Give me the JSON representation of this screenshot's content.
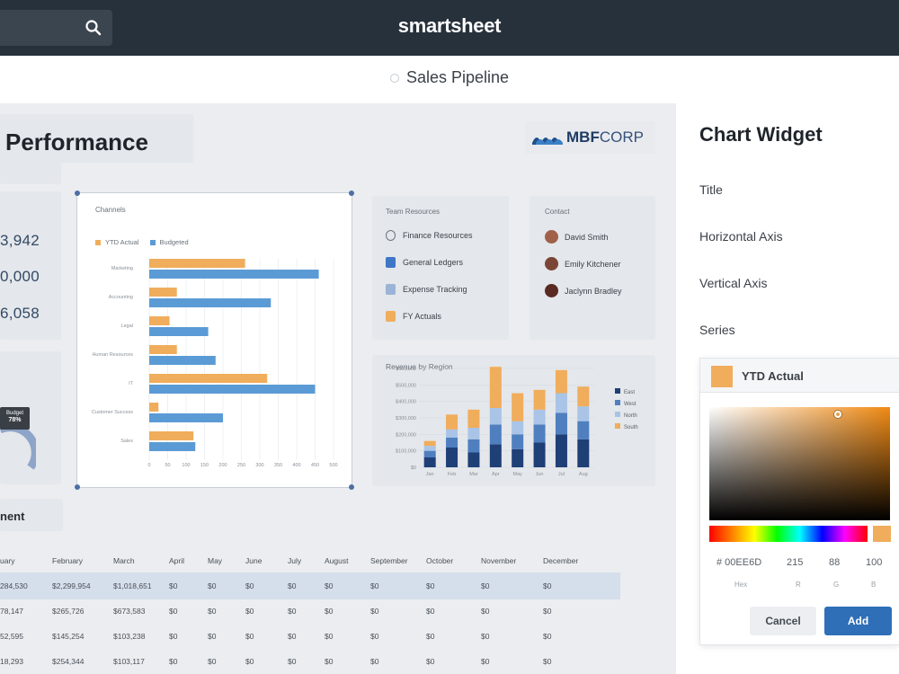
{
  "app": {
    "brand": "smartsheet",
    "sheet_title": "Sales Pipeline"
  },
  "dashboard": {
    "title": "Performance",
    "logo": {
      "bold": "MBF",
      "light": "CORP"
    },
    "stats": [
      "3,942",
      "0,000",
      "6,058"
    ],
    "gauge_badge": {
      "label": "Budget",
      "value": "78%"
    },
    "section_label": "nent",
    "bar_chart": {
      "title": "Channels",
      "legend": [
        "YTD Actual",
        "Budgeted"
      ]
    },
    "team_resources": {
      "title": "Team Resources",
      "items": [
        "Finance Resources",
        "General Ledgers",
        "Expense Tracking",
        "FY Actuals"
      ]
    },
    "contact": {
      "title": "Contact",
      "items": [
        "David Smith",
        "Emily Kitchener",
        "Jaclynn Bradley"
      ]
    },
    "region_chart": {
      "title": "Revenue by Region"
    },
    "month_table": {
      "headers": [
        "uary",
        "February",
        "March",
        "April",
        "May",
        "June",
        "July",
        "August",
        "September",
        "October",
        "November",
        "December"
      ],
      "rows": [
        [
          "284,530",
          "$2,299,954",
          "$1,018,651",
          "$0",
          "$0",
          "$0",
          "$0",
          "$0",
          "$0",
          "$0",
          "$0",
          "$0"
        ],
        [
          "78,147",
          "$265,726",
          "$673,583",
          "$0",
          "$0",
          "$0",
          "$0",
          "$0",
          "$0",
          "$0",
          "$0",
          "$0"
        ],
        [
          "52,595",
          "$145,254",
          "$103,238",
          "$0",
          "$0",
          "$0",
          "$0",
          "$0",
          "$0",
          "$0",
          "$0",
          "$0"
        ],
        [
          "18,293",
          "$254,344",
          "$103,117",
          "$0",
          "$0",
          "$0",
          "$0",
          "$0",
          "$0",
          "$0",
          "$0",
          "$0"
        ]
      ]
    }
  },
  "chart_data": [
    {
      "type": "bar",
      "orientation": "horizontal",
      "title": "Channels",
      "categories": [
        "Marketing",
        "Accounting",
        "Legal",
        "Human Resources",
        "IT",
        "Customer Success",
        "Sales"
      ],
      "series": [
        {
          "name": "YTD Actual",
          "color": "#f0ad5c",
          "values": [
            260,
            75,
            55,
            75,
            320,
            25,
            120
          ]
        },
        {
          "name": "Budgeted",
          "color": "#5b9bd5",
          "values": [
            460,
            330,
            160,
            180,
            450,
            200,
            125
          ]
        }
      ],
      "xlim": [
        0,
        500
      ]
    },
    {
      "type": "bar",
      "stacked": true,
      "title": "Revenue by Region",
      "categories": [
        "Jan",
        "Feb",
        "Mar",
        "Apr",
        "May",
        "Jun",
        "Jul",
        "Aug"
      ],
      "series": [
        {
          "name": "East",
          "color": "#1f3f77",
          "values": [
            60000,
            120000,
            90000,
            140000,
            110000,
            150000,
            200000,
            170000
          ]
        },
        {
          "name": "West",
          "color": "#4f7fbf",
          "values": [
            40000,
            60000,
            80000,
            120000,
            90000,
            110000,
            130000,
            110000
          ]
        },
        {
          "name": "North",
          "color": "#a9c4e6",
          "values": [
            30000,
            50000,
            70000,
            100000,
            80000,
            90000,
            120000,
            90000
          ]
        },
        {
          "name": "South",
          "color": "#f0ad5c",
          "values": [
            30000,
            90000,
            110000,
            250000,
            170000,
            120000,
            140000,
            120000
          ]
        }
      ],
      "ylim": [
        0,
        600000
      ]
    }
  ],
  "panel": {
    "title": "Chart Widget",
    "labels": [
      "Title",
      "Horizontal Axis",
      "Vertical Axis",
      "Series"
    ],
    "series_name": "YTD Actual",
    "hex": "# 00EE6D",
    "rgba": [
      "215",
      "88",
      "100"
    ],
    "hex_label": "Hex",
    "rgb_labels": [
      "R",
      "G",
      "B"
    ],
    "cancel": "Cancel",
    "add": "Add"
  }
}
